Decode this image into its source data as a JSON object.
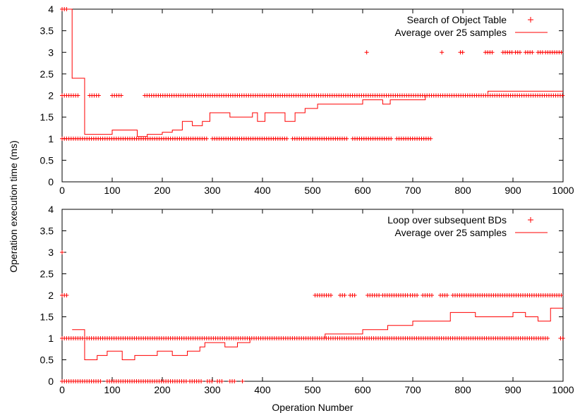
{
  "figure": {
    "ylabel": "Operation execution time (ms)",
    "xlabel": "Operation Number"
  },
  "chart_data": [
    {
      "type": "scatter",
      "title": "",
      "xlabel": "",
      "ylabel": "Operation execution time (ms)",
      "xlim": [
        0,
        1000
      ],
      "ylim": [
        0,
        4
      ],
      "x_ticks": [
        "0",
        "100",
        "200",
        "300",
        "400",
        "500",
        "600",
        "700",
        "800",
        "900",
        "1000"
      ],
      "y_ticks": [
        "0",
        "0.5",
        "1",
        "1.5",
        "2",
        "2.5",
        "3",
        "3.5",
        "4"
      ],
      "grid": false,
      "legend_position": "top-right",
      "color": "#ff0000",
      "series": [
        {
          "name": "Search of Object Table",
          "kind": "points",
          "marker": "+",
          "bands": [
            {
              "y": 4,
              "ranges": [
                [
                  0,
                  10
                ]
              ]
            },
            {
              "y": 3,
              "ranges": [
                [
                  608,
                  612
                ],
                [
                  758,
                  762
                ],
                [
                  795,
                  800
                ],
                [
                  845,
                  860
                ],
                [
                  880,
                  900
                ],
                [
                  905,
                  915
                ],
                [
                  925,
                  940
                ],
                [
                  950,
                  960
                ],
                [
                  965,
                  1000
                ]
              ]
            },
            {
              "y": 2,
              "ranges": [
                [
                  0,
                  35
                ],
                [
                  55,
                  75
                ],
                [
                  100,
                  120
                ],
                [
                  165,
                  1000
                ]
              ]
            },
            {
              "y": 1,
              "ranges": [
                [
                  0,
                  290
                ],
                [
                  300,
                  450
                ],
                [
                  460,
                  570
                ],
                [
                  580,
                  660
                ],
                [
                  668,
                  740
                ]
              ]
            }
          ]
        },
        {
          "name": "Average over 25 samples",
          "kind": "step",
          "x": [
            0,
            20,
            45,
            100,
            150,
            170,
            200,
            220,
            240,
            260,
            280,
            295,
            335,
            380,
            390,
            405,
            445,
            465,
            485,
            510,
            525,
            560,
            575,
            600,
            625,
            640,
            655,
            675,
            700,
            725,
            775,
            800,
            850,
            880,
            1000
          ],
          "y": [
            4.0,
            2.4,
            1.1,
            1.2,
            1.05,
            1.1,
            1.15,
            1.2,
            1.4,
            1.3,
            1.4,
            1.6,
            1.5,
            1.6,
            1.4,
            1.6,
            1.4,
            1.6,
            1.7,
            1.8,
            1.8,
            1.8,
            1.8,
            1.9,
            1.9,
            1.8,
            1.9,
            1.9,
            1.9,
            2.0,
            2.0,
            2.0,
            2.1,
            2.1,
            2.1
          ]
        }
      ]
    },
    {
      "type": "scatter",
      "title": "",
      "xlabel": "Operation Number",
      "ylabel": "Operation execution time (ms)",
      "xlim": [
        0,
        1000
      ],
      "ylim": [
        0,
        4
      ],
      "x_ticks": [
        "0",
        "100",
        "200",
        "300",
        "400",
        "500",
        "600",
        "700",
        "800",
        "900",
        "1000"
      ],
      "y_ticks": [
        "0",
        "0.5",
        "1",
        "1.5",
        "2",
        "2.5",
        "3",
        "3.5",
        "4"
      ],
      "grid": false,
      "legend_position": "top-right",
      "color": "#ff0000",
      "series": [
        {
          "name": "Loop over subsequent BDs",
          "kind": "points",
          "marker": "+",
          "bands": [
            {
              "y": 3,
              "ranges": [
                [
                  0,
                  2
                ]
              ]
            },
            {
              "y": 2,
              "ranges": [
                [
                  0,
                  12
                ],
                [
                  505,
                  540
                ],
                [
                  555,
                  565
                ],
                [
                  575,
                  585
                ],
                [
                  610,
                  635
                ],
                [
                  640,
                  690
                ],
                [
                  695,
                  710
                ],
                [
                  720,
                  740
                ],
                [
                  755,
                  770
                ],
                [
                  780,
                  1000
                ]
              ]
            },
            {
              "y": 1,
              "ranges": [
                [
                  0,
                  970
                ],
                [
                  995,
                  1000
                ]
              ]
            },
            {
              "y": 0,
              "ranges": [
                [
                  0,
                  80
                ],
                [
                  90,
                  250
                ],
                [
                  255,
                  280
                ],
                [
                  290,
                  300
                ],
                [
                  310,
                  320
                ],
                [
                  335,
                  345
                ],
                [
                  360,
                  362
                ]
              ]
            }
          ]
        },
        {
          "name": "Average over 25 samples",
          "kind": "step",
          "x": [
            20,
            45,
            70,
            90,
            120,
            145,
            190,
            220,
            250,
            275,
            285,
            300,
            325,
            350,
            375,
            500,
            525,
            575,
            600,
            650,
            700,
            750,
            775,
            800,
            825,
            850,
            900,
            925,
            950,
            975,
            1000
          ],
          "y": [
            1.2,
            0.5,
            0.6,
            0.7,
            0.5,
            0.6,
            0.7,
            0.6,
            0.7,
            0.8,
            0.9,
            0.9,
            0.8,
            0.9,
            1.0,
            1.0,
            1.1,
            1.1,
            1.2,
            1.3,
            1.4,
            1.4,
            1.6,
            1.6,
            1.5,
            1.5,
            1.6,
            1.5,
            1.4,
            1.7,
            1.7
          ]
        }
      ]
    }
  ]
}
